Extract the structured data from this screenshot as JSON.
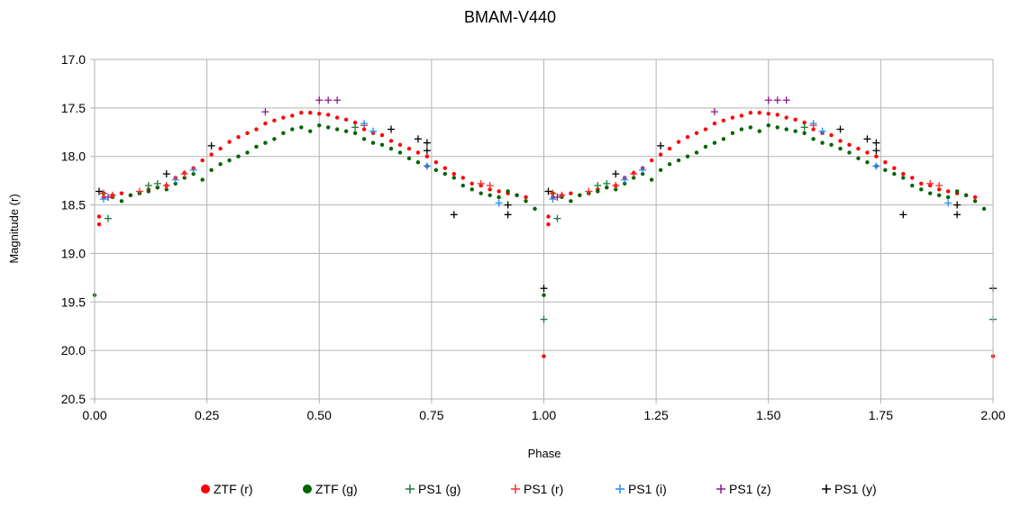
{
  "chart_data": {
    "type": "scatter",
    "title": "BMAM-V440",
    "xlabel": "Phase",
    "ylabel": "Magnitude (r)",
    "xlim": [
      0,
      2
    ],
    "ylim": [
      17.0,
      20.5
    ],
    "y_inverted": true,
    "grid": true,
    "legend_position": "bottom",
    "x_ticks": [
      "0.00",
      "0.25",
      "0.50",
      "0.75",
      "1.00",
      "1.25",
      "1.50",
      "1.75",
      "2.00"
    ],
    "y_ticks": [
      "17.0",
      "17.5",
      "18.0",
      "18.5",
      "19.0",
      "19.5",
      "20.0",
      "20.5"
    ],
    "series": [
      {
        "name": "ZTF (r)",
        "marker": "dot",
        "color": "#ff0000",
        "points": [
          [
            0.01,
            18.62
          ],
          [
            0.01,
            18.7
          ],
          [
            0.02,
            18.42
          ],
          [
            0.04,
            18.4
          ],
          [
            0.06,
            18.38
          ],
          [
            0.08,
            18.4
          ],
          [
            0.1,
            18.38
          ],
          [
            0.12,
            18.34
          ],
          [
            0.14,
            18.32
          ],
          [
            0.16,
            18.3
          ],
          [
            0.18,
            18.22
          ],
          [
            0.2,
            18.17
          ],
          [
            0.22,
            18.12
          ],
          [
            0.24,
            18.04
          ],
          [
            0.26,
            17.98
          ],
          [
            0.28,
            17.92
          ],
          [
            0.3,
            17.85
          ],
          [
            0.32,
            17.8
          ],
          [
            0.34,
            17.76
          ],
          [
            0.36,
            17.72
          ],
          [
            0.38,
            17.66
          ],
          [
            0.4,
            17.63
          ],
          [
            0.42,
            17.6
          ],
          [
            0.44,
            17.58
          ],
          [
            0.46,
            17.55
          ],
          [
            0.48,
            17.55
          ],
          [
            0.5,
            17.56
          ],
          [
            0.52,
            17.57
          ],
          [
            0.54,
            17.6
          ],
          [
            0.56,
            17.62
          ],
          [
            0.58,
            17.65
          ],
          [
            0.6,
            17.72
          ],
          [
            0.62,
            17.76
          ],
          [
            0.64,
            17.78
          ],
          [
            0.66,
            17.84
          ],
          [
            0.68,
            17.88
          ],
          [
            0.7,
            17.92
          ],
          [
            0.72,
            17.96
          ],
          [
            0.74,
            18.0
          ],
          [
            0.76,
            18.06
          ],
          [
            0.78,
            18.12
          ],
          [
            0.8,
            18.18
          ],
          [
            0.82,
            18.22
          ],
          [
            0.84,
            18.28
          ],
          [
            0.86,
            18.3
          ],
          [
            0.88,
            18.34
          ],
          [
            0.9,
            18.36
          ],
          [
            0.92,
            18.38
          ],
          [
            0.94,
            18.4
          ],
          [
            0.96,
            18.42
          ],
          [
            1.0,
            20.06
          ],
          [
            1.01,
            18.62
          ],
          [
            1.01,
            18.7
          ],
          [
            1.02,
            18.42
          ],
          [
            1.04,
            18.4
          ],
          [
            1.06,
            18.38
          ],
          [
            1.08,
            18.4
          ],
          [
            1.1,
            18.38
          ],
          [
            1.12,
            18.34
          ],
          [
            1.14,
            18.32
          ],
          [
            1.16,
            18.3
          ],
          [
            1.18,
            18.22
          ],
          [
            1.2,
            18.17
          ],
          [
            1.22,
            18.12
          ],
          [
            1.24,
            18.04
          ],
          [
            1.26,
            17.98
          ],
          [
            1.28,
            17.92
          ],
          [
            1.3,
            17.85
          ],
          [
            1.32,
            17.8
          ],
          [
            1.34,
            17.76
          ],
          [
            1.36,
            17.72
          ],
          [
            1.38,
            17.66
          ],
          [
            1.4,
            17.63
          ],
          [
            1.42,
            17.6
          ],
          [
            1.44,
            17.58
          ],
          [
            1.46,
            17.55
          ],
          [
            1.48,
            17.55
          ],
          [
            1.5,
            17.56
          ],
          [
            1.52,
            17.57
          ],
          [
            1.54,
            17.6
          ],
          [
            1.56,
            17.62
          ],
          [
            1.58,
            17.65
          ],
          [
            1.6,
            17.72
          ],
          [
            1.62,
            17.76
          ],
          [
            1.64,
            17.78
          ],
          [
            1.66,
            17.84
          ],
          [
            1.68,
            17.88
          ],
          [
            1.7,
            17.92
          ],
          [
            1.72,
            17.96
          ],
          [
            1.74,
            18.0
          ],
          [
            1.76,
            18.06
          ],
          [
            1.78,
            18.12
          ],
          [
            1.8,
            18.18
          ],
          [
            1.82,
            18.22
          ],
          [
            1.84,
            18.28
          ],
          [
            1.86,
            18.3
          ],
          [
            1.88,
            18.34
          ],
          [
            1.9,
            18.36
          ],
          [
            1.92,
            18.38
          ],
          [
            1.94,
            18.4
          ],
          [
            1.96,
            18.42
          ],
          [
            2.0,
            20.06
          ]
        ]
      },
      {
        "name": "ZTF (g)",
        "marker": "dot",
        "color": "#006400",
        "points": [
          [
            0.0,
            19.43
          ],
          [
            0.02,
            18.38
          ],
          [
            0.04,
            18.42
          ],
          [
            0.06,
            18.46
          ],
          [
            0.08,
            18.4
          ],
          [
            0.1,
            18.38
          ],
          [
            0.12,
            18.36
          ],
          [
            0.14,
            18.32
          ],
          [
            0.16,
            18.34
          ],
          [
            0.18,
            18.28
          ],
          [
            0.2,
            18.22
          ],
          [
            0.22,
            18.18
          ],
          [
            0.24,
            18.24
          ],
          [
            0.26,
            18.14
          ],
          [
            0.28,
            18.08
          ],
          [
            0.3,
            18.04
          ],
          [
            0.32,
            18.0
          ],
          [
            0.34,
            17.96
          ],
          [
            0.36,
            17.9
          ],
          [
            0.38,
            17.86
          ],
          [
            0.4,
            17.82
          ],
          [
            0.42,
            17.76
          ],
          [
            0.44,
            17.72
          ],
          [
            0.46,
            17.7
          ],
          [
            0.48,
            17.74
          ],
          [
            0.5,
            17.68
          ],
          [
            0.52,
            17.7
          ],
          [
            0.54,
            17.72
          ],
          [
            0.56,
            17.74
          ],
          [
            0.58,
            17.76
          ],
          [
            0.6,
            17.82
          ],
          [
            0.62,
            17.86
          ],
          [
            0.64,
            17.88
          ],
          [
            0.66,
            17.92
          ],
          [
            0.68,
            17.96
          ],
          [
            0.7,
            18.02
          ],
          [
            0.72,
            18.06
          ],
          [
            0.74,
            18.1
          ],
          [
            0.76,
            18.14
          ],
          [
            0.78,
            18.18
          ],
          [
            0.8,
            18.22
          ],
          [
            0.82,
            18.3
          ],
          [
            0.84,
            18.34
          ],
          [
            0.86,
            18.38
          ],
          [
            0.88,
            18.4
          ],
          [
            0.9,
            18.42
          ],
          [
            0.92,
            18.36
          ],
          [
            0.94,
            18.4
          ],
          [
            0.96,
            18.46
          ],
          [
            0.98,
            18.54
          ],
          [
            1.0,
            19.43
          ],
          [
            1.02,
            18.38
          ],
          [
            1.04,
            18.42
          ],
          [
            1.06,
            18.46
          ],
          [
            1.08,
            18.4
          ],
          [
            1.1,
            18.38
          ],
          [
            1.12,
            18.36
          ],
          [
            1.14,
            18.32
          ],
          [
            1.16,
            18.34
          ],
          [
            1.18,
            18.28
          ],
          [
            1.2,
            18.22
          ],
          [
            1.22,
            18.18
          ],
          [
            1.24,
            18.24
          ],
          [
            1.26,
            18.14
          ],
          [
            1.28,
            18.08
          ],
          [
            1.3,
            18.04
          ],
          [
            1.32,
            18.0
          ],
          [
            1.34,
            17.96
          ],
          [
            1.36,
            17.9
          ],
          [
            1.38,
            17.86
          ],
          [
            1.4,
            17.82
          ],
          [
            1.42,
            17.76
          ],
          [
            1.44,
            17.72
          ],
          [
            1.46,
            17.7
          ],
          [
            1.48,
            17.74
          ],
          [
            1.5,
            17.68
          ],
          [
            1.52,
            17.7
          ],
          [
            1.54,
            17.72
          ],
          [
            1.56,
            17.74
          ],
          [
            1.58,
            17.76
          ],
          [
            1.6,
            17.82
          ],
          [
            1.62,
            17.86
          ],
          [
            1.64,
            17.88
          ],
          [
            1.66,
            17.92
          ],
          [
            1.68,
            17.96
          ],
          [
            1.7,
            18.02
          ],
          [
            1.72,
            18.06
          ],
          [
            1.74,
            18.1
          ],
          [
            1.76,
            18.14
          ],
          [
            1.78,
            18.18
          ],
          [
            1.8,
            18.22
          ],
          [
            1.82,
            18.3
          ],
          [
            1.84,
            18.34
          ],
          [
            1.86,
            18.38
          ],
          [
            1.88,
            18.4
          ],
          [
            1.9,
            18.42
          ],
          [
            1.92,
            18.36
          ],
          [
            1.94,
            18.4
          ],
          [
            1.96,
            18.46
          ],
          [
            1.98,
            18.54
          ]
        ]
      },
      {
        "name": "PS1 (g)",
        "marker": "plus",
        "color": "#1a7a3a",
        "points": [
          [
            0.03,
            18.64
          ],
          [
            0.12,
            18.3
          ],
          [
            0.14,
            18.28
          ],
          [
            0.58,
            17.7
          ],
          [
            1.0,
            19.68
          ],
          [
            1.03,
            18.64
          ],
          [
            1.12,
            18.3
          ],
          [
            1.14,
            18.28
          ],
          [
            1.58,
            17.7
          ],
          [
            2.0,
            19.68
          ]
        ]
      },
      {
        "name": "PS1 (r)",
        "marker": "plus",
        "color": "#ff2a2a",
        "points": [
          [
            0.02,
            18.38
          ],
          [
            0.04,
            18.4
          ],
          [
            0.1,
            18.36
          ],
          [
            0.16,
            18.3
          ],
          [
            0.2,
            18.18
          ],
          [
            0.6,
            17.68
          ],
          [
            0.74,
            18.1
          ],
          [
            0.86,
            18.28
          ],
          [
            0.88,
            18.3
          ],
          [
            1.02,
            18.38
          ],
          [
            1.04,
            18.4
          ],
          [
            1.1,
            18.36
          ],
          [
            1.16,
            18.3
          ],
          [
            1.2,
            18.18
          ],
          [
            1.6,
            17.68
          ],
          [
            1.74,
            18.1
          ],
          [
            1.86,
            18.28
          ],
          [
            1.88,
            18.3
          ]
        ]
      },
      {
        "name": "PS1 (i)",
        "marker": "plus",
        "color": "#1e90ff",
        "points": [
          [
            0.02,
            18.44
          ],
          [
            0.18,
            18.24
          ],
          [
            0.22,
            18.14
          ],
          [
            0.6,
            17.66
          ],
          [
            0.62,
            17.74
          ],
          [
            0.74,
            18.1
          ],
          [
            0.9,
            18.48
          ],
          [
            1.02,
            18.44
          ],
          [
            1.18,
            18.24
          ],
          [
            1.22,
            18.14
          ],
          [
            1.6,
            17.66
          ],
          [
            1.62,
            17.74
          ],
          [
            1.74,
            18.1
          ],
          [
            1.9,
            18.48
          ]
        ]
      },
      {
        "name": "PS1 (z)",
        "marker": "plus",
        "color": "#8b1a8b",
        "points": [
          [
            0.03,
            18.42
          ],
          [
            0.38,
            17.54
          ],
          [
            0.5,
            17.42
          ],
          [
            0.52,
            17.42
          ],
          [
            0.54,
            17.42
          ],
          [
            1.03,
            18.42
          ],
          [
            1.38,
            17.54
          ],
          [
            1.5,
            17.42
          ],
          [
            1.52,
            17.42
          ],
          [
            1.54,
            17.42
          ]
        ]
      },
      {
        "name": "PS1 (y)",
        "marker": "plus",
        "color": "#000000",
        "points": [
          [
            0.01,
            18.36
          ],
          [
            0.16,
            18.18
          ],
          [
            0.26,
            17.89
          ],
          [
            0.66,
            17.72
          ],
          [
            0.72,
            17.82
          ],
          [
            0.74,
            17.86
          ],
          [
            0.74,
            17.94
          ],
          [
            0.8,
            18.6
          ],
          [
            0.92,
            18.5
          ],
          [
            0.92,
            18.6
          ],
          [
            1.0,
            19.36
          ],
          [
            1.01,
            18.36
          ],
          [
            1.16,
            18.18
          ],
          [
            1.26,
            17.89
          ],
          [
            1.66,
            17.72
          ],
          [
            1.72,
            17.82
          ],
          [
            1.74,
            17.86
          ],
          [
            1.74,
            17.94
          ],
          [
            1.8,
            18.6
          ],
          [
            1.92,
            18.5
          ],
          [
            1.92,
            18.6
          ],
          [
            2.0,
            19.36
          ]
        ]
      }
    ]
  }
}
